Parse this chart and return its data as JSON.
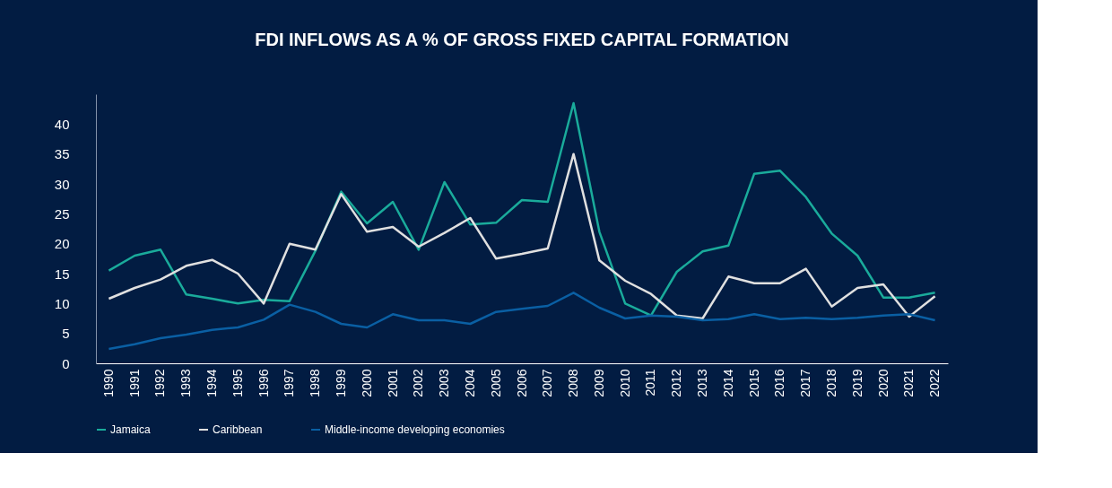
{
  "chart_data": {
    "type": "line",
    "title": "FDI INFLOWS AS A % OF GROSS FIXED CAPITAL FORMATION",
    "categories": [
      "1990",
      "1991",
      "1992",
      "1993",
      "1994",
      "1995",
      "1996",
      "1997",
      "1998",
      "1999",
      "2000",
      "2001",
      "2002",
      "2003",
      "2004",
      "2005",
      "2006",
      "2007",
      "2008",
      "2009",
      "2010",
      "2011",
      "2012",
      "2013",
      "2014",
      "2015",
      "2016",
      "2017",
      "2018",
      "2019",
      "2020",
      "2021",
      "2022"
    ],
    "series": [
      {
        "name": "Jamaica",
        "color": "#1aab9b",
        "values": [
          15.5,
          18,
          19,
          11.5,
          10.8,
          10,
          10.6,
          10.4,
          18.8,
          28.7,
          23.4,
          27,
          19,
          30.3,
          23.2,
          23.5,
          27.3,
          27,
          43.5,
          22,
          10,
          8,
          15.3,
          18.7,
          19.7,
          31.7,
          32.2,
          27.8,
          21.7,
          18,
          11,
          11,
          11.8
        ]
      },
      {
        "name": "Caribbean",
        "color": "#e0e0e0",
        "values": [
          10.8,
          12.6,
          14,
          16.3,
          17.3,
          15,
          10,
          20,
          19,
          28.3,
          22,
          22.8,
          19.5,
          21.8,
          24.3,
          17.5,
          18.3,
          19.2,
          35,
          17.2,
          13.8,
          11.6,
          8,
          7.5,
          14.5,
          13.4,
          13.4,
          15.8,
          9.5,
          12.6,
          13.2,
          7.8,
          11.2
        ]
      },
      {
        "name": "Middle-income developing economies",
        "color": "#0a5fa3",
        "values": [
          2.4,
          3.2,
          4.2,
          4.8,
          5.6,
          6,
          7.3,
          9.8,
          8.6,
          6.6,
          6,
          8.2,
          7.2,
          7.2,
          6.6,
          8.6,
          9.1,
          9.6,
          11.8,
          9.3,
          7.5,
          8,
          7.8,
          7.2,
          7.4,
          8.2,
          7.4,
          7.6,
          7.4,
          7.6,
          8,
          8.2,
          7.2
        ]
      }
    ],
    "ylim": [
      0,
      45
    ],
    "yticks": [
      0,
      5,
      10,
      15,
      20,
      25,
      30,
      35,
      40
    ],
    "grid": false,
    "legend": "bottom",
    "marker": "none",
    "line_style": "solid"
  }
}
